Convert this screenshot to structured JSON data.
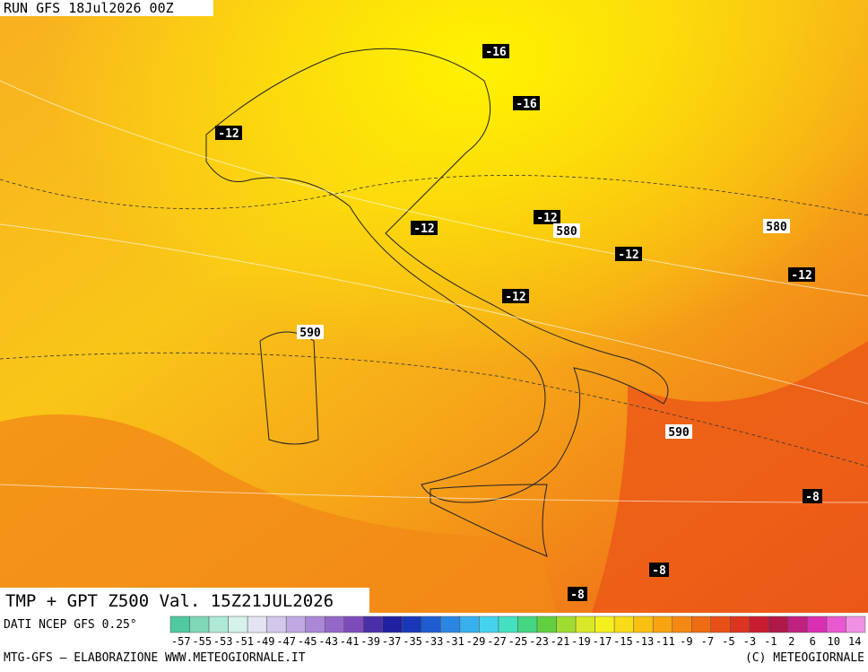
{
  "header": {
    "run": "RUN GFS 18Jul2026 00Z"
  },
  "map": {
    "labels": [
      "-16",
      "-16",
      "-12",
      "-12",
      "-12",
      "580",
      "-12",
      "580",
      "-12",
      "-12",
      "590",
      "590",
      "-8",
      "-8",
      "-8"
    ]
  },
  "footer": {
    "title": "TMP + GPT Z500 Val. 15Z21JUL2026",
    "source": "DATI NCEP GFS 0.25°",
    "credit": "MTG-GFS – ELABORAZIONE WWW.METEOGIORNALE.IT",
    "copyright": "(C) METEOGIORNALE"
  },
  "colorbar": {
    "labels": [
      "-57",
      "-55",
      "-53",
      "-51",
      "-49",
      "-47",
      "-45",
      "-43",
      "-41",
      "-39",
      "-37",
      "-35",
      "-33",
      "-31",
      "-29",
      "-27",
      "-25",
      "-23",
      "-21",
      "-19",
      "-17",
      "-15",
      "-13",
      "-11",
      "-9",
      "-7",
      "-5",
      "-3",
      "-1",
      "2",
      "6",
      "10",
      "14"
    ],
    "colors": [
      "#4fc9a0",
      "#7fd8b8",
      "#aee8d6",
      "#d4f1ea",
      "#e3e3f2",
      "#d2c8ec",
      "#c0a9e2",
      "#aa88d6",
      "#9468c8",
      "#7e4cba",
      "#4a2fa8",
      "#2020a0",
      "#1838b8",
      "#1e5cd0",
      "#2a86e2",
      "#38b0ee",
      "#44d2ee",
      "#44e0c0",
      "#44d680",
      "#60d040",
      "#a0dc30",
      "#d8e828",
      "#f4f020",
      "#f8dc18",
      "#f8c010",
      "#f8a410",
      "#f48810",
      "#f06c14",
      "#e85018",
      "#dc3420",
      "#c81c30",
      "#b01848",
      "#c02080",
      "#d830b0",
      "#e858d0",
      "#f090e4"
    ]
  }
}
